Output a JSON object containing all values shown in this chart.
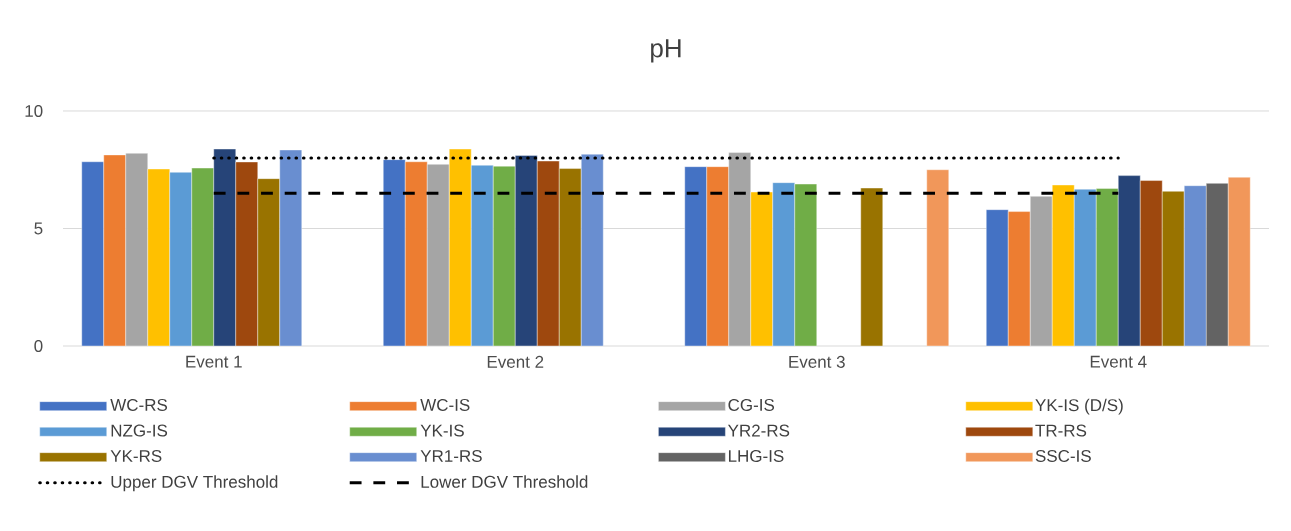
{
  "chart_data": {
    "type": "bar",
    "title": "pH",
    "categories": [
      "Event 1",
      "Event 2",
      "Event 3",
      "Event 4"
    ],
    "ylim": [
      0,
      10
    ],
    "yticks": [
      0,
      5,
      10
    ],
    "grid": "y",
    "legend": "bottom",
    "series": [
      {
        "name": "WC-RS",
        "color": "#4472c4",
        "values": [
          7.84,
          7.93,
          7.63,
          5.8
        ]
      },
      {
        "name": "WC-IS",
        "color": "#ed7d31",
        "values": [
          8.13,
          7.84,
          7.63,
          5.72
        ]
      },
      {
        "name": "CG-IS",
        "color": "#a5a5a5",
        "values": [
          8.2,
          7.73,
          8.23,
          6.37
        ]
      },
      {
        "name": "YK-IS (D/S)",
        "color": "#ffc000",
        "values": [
          7.53,
          8.38,
          6.55,
          6.85
        ]
      },
      {
        "name": "NZG-IS",
        "color": "#5b9bd5",
        "values": [
          7.39,
          7.69,
          6.95,
          6.67
        ]
      },
      {
        "name": "YK-IS",
        "color": "#70ad47",
        "values": [
          7.57,
          7.65,
          6.89,
          6.7
        ]
      },
      {
        "name": "YR2-RS",
        "color": "#264478",
        "values": [
          8.38,
          8.11,
          null,
          7.25
        ]
      },
      {
        "name": "TR-RS",
        "color": "#9e480e",
        "values": [
          7.83,
          7.87,
          null,
          7.04
        ]
      },
      {
        "name": "YK-RS",
        "color": "#997300",
        "values": [
          7.12,
          7.55,
          6.72,
          6.58
        ]
      },
      {
        "name": "YR1-RS",
        "color": "#698ed0",
        "values": [
          8.34,
          8.16,
          null,
          6.82
        ]
      },
      {
        "name": "LHG-IS",
        "color": "#636363",
        "values": [
          null,
          null,
          null,
          6.92
        ]
      },
      {
        "name": "SSC-IS",
        "color": "#f1975a",
        "values": [
          null,
          null,
          7.5,
          7.18
        ]
      },
      {
        "name": "Upper DGV Threshold",
        "type": "line",
        "line_style": "dotted",
        "color": "#000000",
        "values": [
          8,
          8,
          8,
          8
        ]
      },
      {
        "name": "Lower DGV Threshold",
        "type": "line",
        "line_style": "dashed",
        "color": "#000000",
        "values": [
          6.5,
          6.5,
          6.5,
          6.5
        ]
      }
    ]
  }
}
